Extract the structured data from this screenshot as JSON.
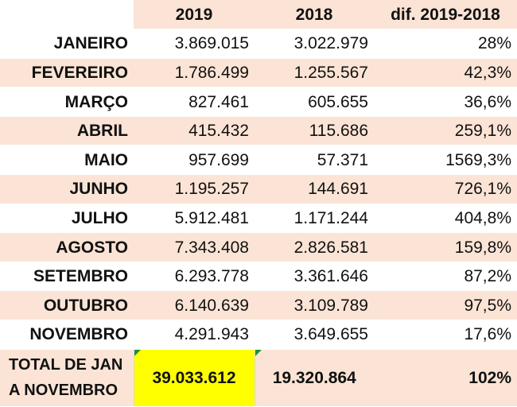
{
  "header": {
    "col_label": "",
    "col_2019": "2019",
    "col_2018": "2018",
    "col_diff": "dif. 2019-2018"
  },
  "rows": [
    {
      "month": "JANEIRO",
      "v2019": "3.869.015",
      "v2018": "3.022.979",
      "diff": "28%"
    },
    {
      "month": "FEVEREIRO",
      "v2019": "1.786.499",
      "v2018": "1.255.567",
      "diff": "42,3%"
    },
    {
      "month": "MARÇO",
      "v2019": "827.461",
      "v2018": "605.655",
      "diff": "36,6%"
    },
    {
      "month": "ABRIL",
      "v2019": "415.432",
      "v2018": "115.686",
      "diff": "259,1%"
    },
    {
      "month": "MAIO",
      "v2019": "957.699",
      "v2018": "57.371",
      "diff": "1569,3%"
    },
    {
      "month": "JUNHO",
      "v2019": "1.195.257",
      "v2018": "144.691",
      "diff": "726,1%"
    },
    {
      "month": "JULHO",
      "v2019": "5.912.481",
      "v2018": "1.171.244",
      "diff": "404,8%"
    },
    {
      "month": "AGOSTO",
      "v2019": "7.343.408",
      "v2018": "2.826.581",
      "diff": "159,8%"
    },
    {
      "month": "SETEMBRO",
      "v2019": "6.293.778",
      "v2018": "3.361.646",
      "diff": "87,2%"
    },
    {
      "month": "OUTUBRO",
      "v2019": "6.140.639",
      "v2018": "3.109.789",
      "diff": "97,5%"
    },
    {
      "month": "NOVEMBRO",
      "v2019": "4.291.943",
      "v2018": "3.649.655",
      "diff": "17,6%"
    }
  ],
  "total": {
    "label_line1": "TOTAL DE JAN",
    "label_line2": "A NOVEMBRO",
    "v2019": "39.033.612",
    "v2018": "19.320.864",
    "diff": "102%"
  },
  "colors": {
    "band": "#fbe4d5",
    "highlight": "#ffff00",
    "comment_marker": "#1e8f3c"
  }
}
